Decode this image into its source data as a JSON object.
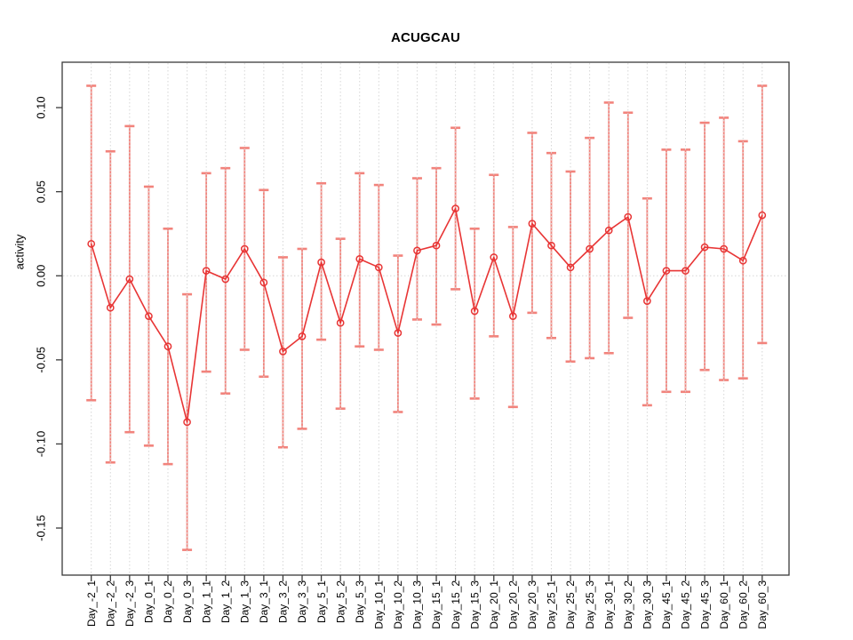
{
  "chart_data": {
    "type": "line",
    "title": "ACUGCAU",
    "xlabel": "",
    "ylabel": "activity",
    "categories": [
      "Day_-2_1",
      "Day_-2_2",
      "Day_-2_3",
      "Day_0_1",
      "Day_0_2",
      "Day_0_3",
      "Day_1_1",
      "Day_1_2",
      "Day_1_3",
      "Day_3_1",
      "Day_3_2",
      "Day_3_3",
      "Day_5_1",
      "Day_5_2",
      "Day_5_3",
      "Day_10_1",
      "Day_10_2",
      "Day_10_3",
      "Day_15_1",
      "Day_15_2",
      "Day_15_3",
      "Day_20_1",
      "Day_20_2",
      "Day_20_3",
      "Day_25_1",
      "Day_25_2",
      "Day_25_3",
      "Day_30_1",
      "Day_30_2",
      "Day_30_3",
      "Day_45_1",
      "Day_45_2",
      "Day_45_3",
      "Day_60_1",
      "Day_60_2",
      "Day_60_3"
    ],
    "series": [
      {
        "name": "activity",
        "values": [
          0.019,
          -0.019,
          -0.002,
          -0.024,
          -0.042,
          -0.087,
          0.003,
          -0.002,
          0.016,
          -0.004,
          -0.045,
          -0.036,
          0.008,
          -0.028,
          0.01,
          0.005,
          -0.034,
          0.015,
          0.018,
          0.04,
          -0.021,
          0.011,
          -0.024,
          0.031,
          0.018,
          0.005,
          0.016,
          0.027,
          0.035,
          -0.015,
          0.003,
          0.003,
          0.017,
          0.016,
          0.009,
          0.036
        ],
        "err_low": [
          -0.074,
          -0.111,
          -0.093,
          -0.101,
          -0.112,
          -0.163,
          -0.057,
          -0.07,
          -0.044,
          -0.06,
          -0.102,
          -0.091,
          -0.038,
          -0.079,
          -0.042,
          -0.044,
          -0.081,
          -0.026,
          -0.029,
          -0.008,
          -0.073,
          -0.036,
          -0.078,
          -0.022,
          -0.037,
          -0.051,
          -0.049,
          -0.046,
          -0.025,
          -0.077,
          -0.069,
          -0.069,
          -0.056,
          -0.062,
          -0.061,
          -0.04
        ],
        "err_high": [
          0.113,
          0.074,
          0.089,
          0.053,
          0.028,
          -0.011,
          0.061,
          0.064,
          0.076,
          0.051,
          0.011,
          0.016,
          0.055,
          0.022,
          0.061,
          0.054,
          0.012,
          0.058,
          0.064,
          0.088,
          0.028,
          0.06,
          0.029,
          0.085,
          0.073,
          0.062,
          0.082,
          0.103,
          0.097,
          0.046,
          0.075,
          0.075,
          0.091,
          0.094,
          0.08,
          0.113
        ]
      }
    ],
    "ytick_labels": [
      "0.10",
      "0.05",
      "0.00",
      "-0.05",
      "-0.10",
      "-0.15"
    ],
    "ytick_values": [
      0.1,
      0.05,
      0.0,
      -0.05,
      -0.1,
      -0.15
    ],
    "ylim": [
      -0.178,
      0.127
    ],
    "grid": {
      "vertical_dotted_per_category": true,
      "horizontal_dotted_at_zero": true
    },
    "legend": "none",
    "marker": "open-circle",
    "colors": {
      "line": "#e83535",
      "error_bar": "#f2837c",
      "grid": "#d6d6d6",
      "axis": "#3a3a3a",
      "text": "#000000",
      "background": "#ffffff"
    }
  }
}
